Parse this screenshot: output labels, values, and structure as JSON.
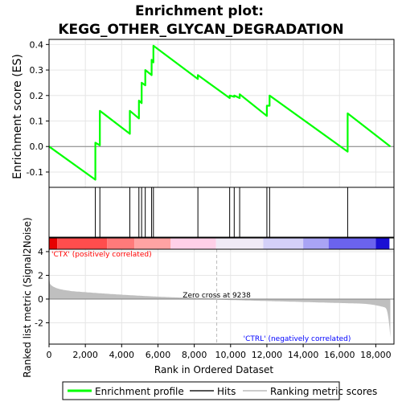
{
  "chart_data": {
    "type": "line",
    "title_line1": "Enrichment plot:",
    "title_line2": "KEGG_OTHER_GLYCAN_DEGRADATION",
    "ylabel_top": "Enrichment score (ES)",
    "ylabel_bottom": "Ranked list metric (Signal2Noise)",
    "xlabel": "Rank in Ordered Dataset",
    "xlim": [
      0,
      19000
    ],
    "x_ticks": [
      0,
      2000,
      4000,
      6000,
      8000,
      10000,
      12000,
      14000,
      16000,
      18000
    ],
    "x_tick_labels": [
      "0",
      "2,000",
      "4,000",
      "6,000",
      "8,000",
      "10,000",
      "12,000",
      "14,000",
      "16,000",
      "18,000"
    ],
    "es_ylim": [
      -0.16,
      0.42
    ],
    "es_ticks": [
      -0.1,
      0.0,
      0.1,
      0.2,
      0.3,
      0.4
    ],
    "es_tick_labels": [
      "-0.1",
      "0.0",
      "0.1",
      "0.2",
      "0.3",
      "0.4"
    ],
    "metric_ylim": [
      -3.8,
      4.2
    ],
    "metric_ticks": [
      -2,
      0,
      2,
      4
    ],
    "metric_tick_labels": [
      "-2",
      "0",
      "2",
      "4"
    ],
    "series": [
      {
        "name": "Enrichment profile",
        "color": "#00ff00",
        "x": [
          0,
          2550,
          2550,
          2800,
          2800,
          4450,
          4450,
          4950,
          4950,
          5100,
          5100,
          5300,
          5300,
          5650,
          5650,
          5750,
          5750,
          8200,
          8200,
          9950,
          9950,
          10200,
          10200,
          10500,
          10500,
          12000,
          12000,
          12150,
          12150,
          16450,
          16450,
          18800
        ],
        "y": [
          0.0,
          -0.13,
          0.015,
          0.005,
          0.14,
          0.05,
          0.14,
          0.11,
          0.18,
          0.17,
          0.25,
          0.24,
          0.3,
          0.28,
          0.34,
          0.33,
          0.395,
          0.265,
          0.28,
          0.19,
          0.2,
          0.195,
          0.2,
          0.19,
          0.205,
          0.12,
          0.16,
          0.16,
          0.2,
          -0.02,
          0.13,
          0.0
        ]
      }
    ],
    "hits": [
      2550,
      2800,
      4450,
      4950,
      5100,
      5300,
      5650,
      5750,
      8200,
      9950,
      10200,
      10500,
      12000,
      12150,
      16450
    ],
    "zero_cross": 9238,
    "zero_cross_label": "Zero cross at 9238",
    "pos_label": "'CTX' (positively correlated)",
    "neg_label": "'CTRL' (negatively correlated)",
    "pos_color": "#ff0000",
    "neg_color": "#0000ff",
    "metric_color": "#bfbfbf",
    "heat_bands": [
      {
        "x0": 0,
        "x1": 450,
        "color": "#e60000"
      },
      {
        "x0": 450,
        "x1": 3200,
        "color": "#ff4d4d"
      },
      {
        "x0": 3200,
        "x1": 4700,
        "color": "#ff7a7a"
      },
      {
        "x0": 4700,
        "x1": 6700,
        "color": "#ffa3a3"
      },
      {
        "x0": 6700,
        "x1": 9200,
        "color": "#ffd0e8"
      },
      {
        "x0": 9200,
        "x1": 11800,
        "color": "#f0eaf6"
      },
      {
        "x0": 11800,
        "x1": 14000,
        "color": "#d4d0f8"
      },
      {
        "x0": 14000,
        "x1": 15400,
        "color": "#a9a4f5"
      },
      {
        "x0": 15400,
        "x1": 18000,
        "color": "#6b63ee"
      },
      {
        "x0": 18000,
        "x1": 18750,
        "color": "#1a0fd4"
      }
    ],
    "legend": [
      "Enrichment profile",
      "Hits",
      "Ranking metric scores"
    ]
  }
}
